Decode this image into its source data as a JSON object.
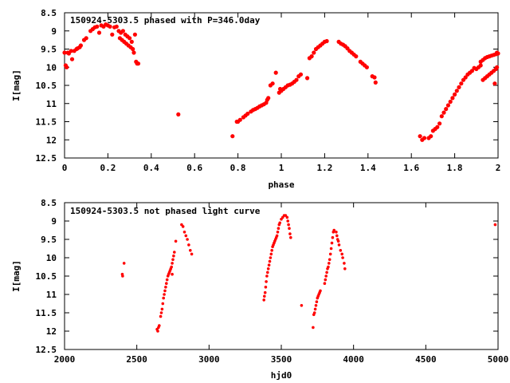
{
  "chart_data": [
    {
      "type": "scatter",
      "title": "150924-5303.5 phased with P=346.0day",
      "xlabel": "phase",
      "ylabel": "I[mag]",
      "xlim": [
        0,
        2
      ],
      "ylim": [
        12.5,
        8.5
      ],
      "y_reversed": true,
      "x_ticks": [
        "0",
        "0.2",
        "0.4",
        "0.6",
        "0.8",
        "1",
        "1.2",
        "1.4",
        "1.6",
        "1.8",
        "2"
      ],
      "x_tick_values": [
        0,
        0.2,
        0.4,
        0.6,
        0.8,
        1.0,
        1.2,
        1.4,
        1.6,
        1.8,
        2.0
      ],
      "y_ticks": [
        "8.5",
        "9",
        "9.5",
        "10",
        "10.5",
        "11",
        "11.5",
        "12",
        "12.5"
      ],
      "y_tick_values": [
        8.5,
        9.0,
        9.5,
        10.0,
        10.5,
        11.0,
        11.5,
        12.0,
        12.5
      ],
      "grid": false,
      "marker_color": "#ff0000",
      "points": [
        [
          0.0,
          9.6
        ],
        [
          0.005,
          9.95
        ],
        [
          0.01,
          10.0
        ],
        [
          0.015,
          9.6
        ],
        [
          0.02,
          9.62
        ],
        [
          0.03,
          9.55
        ],
        [
          0.035,
          9.78
        ],
        [
          0.045,
          9.55
        ],
        [
          0.055,
          9.5
        ],
        [
          0.06,
          9.48
        ],
        [
          0.07,
          9.45
        ],
        [
          0.075,
          9.4
        ],
        [
          0.09,
          9.25
        ],
        [
          0.1,
          9.2
        ],
        [
          0.12,
          9.0
        ],
        [
          0.13,
          8.95
        ],
        [
          0.14,
          8.9
        ],
        [
          0.15,
          8.88
        ],
        [
          0.16,
          9.05
        ],
        [
          0.17,
          8.85
        ],
        [
          0.18,
          8.88
        ],
        [
          0.19,
          8.82
        ],
        [
          0.2,
          8.85
        ],
        [
          0.21,
          8.88
        ],
        [
          0.22,
          9.1
        ],
        [
          0.23,
          8.9
        ],
        [
          0.24,
          8.88
        ],
        [
          0.25,
          9.0
        ],
        [
          0.255,
          9.2
        ],
        [
          0.26,
          9.05
        ],
        [
          0.265,
          9.25
        ],
        [
          0.27,
          9.0
        ],
        [
          0.275,
          9.3
        ],
        [
          0.28,
          9.1
        ],
        [
          0.285,
          9.35
        ],
        [
          0.29,
          9.15
        ],
        [
          0.295,
          9.4
        ],
        [
          0.3,
          9.2
        ],
        [
          0.305,
          9.45
        ],
        [
          0.31,
          9.3
        ],
        [
          0.315,
          9.5
        ],
        [
          0.32,
          9.6
        ],
        [
          0.325,
          9.1
        ],
        [
          0.33,
          9.85
        ],
        [
          0.335,
          9.9
        ],
        [
          0.34,
          9.9
        ],
        [
          0.525,
          11.3
        ],
        [
          0.775,
          11.9
        ],
        [
          0.795,
          11.5
        ],
        [
          0.8,
          11.5
        ],
        [
          0.81,
          11.45
        ],
        [
          0.825,
          11.38
        ],
        [
          0.835,
          11.33
        ],
        [
          0.845,
          11.28
        ],
        [
          0.86,
          11.22
        ],
        [
          0.87,
          11.18
        ],
        [
          0.88,
          11.15
        ],
        [
          0.89,
          11.12
        ],
        [
          0.9,
          11.08
        ],
        [
          0.91,
          11.05
        ],
        [
          0.92,
          11.02
        ],
        [
          0.93,
          10.98
        ],
        [
          0.935,
          10.9
        ],
        [
          0.94,
          10.85
        ],
        [
          0.95,
          10.5
        ],
        [
          0.96,
          10.45
        ],
        [
          0.975,
          10.15
        ],
        [
          0.99,
          10.7
        ],
        [
          0.995,
          10.6
        ],
        [
          1.0,
          10.65
        ],
        [
          1.01,
          10.6
        ],
        [
          1.02,
          10.55
        ],
        [
          1.03,
          10.5
        ],
        [
          1.04,
          10.48
        ],
        [
          1.05,
          10.45
        ],
        [
          1.06,
          10.4
        ],
        [
          1.07,
          10.35
        ],
        [
          1.08,
          10.25
        ],
        [
          1.09,
          10.2
        ],
        [
          1.12,
          10.3
        ],
        [
          1.13,
          9.75
        ],
        [
          1.14,
          9.7
        ],
        [
          1.15,
          9.6
        ],
        [
          1.16,
          9.5
        ],
        [
          1.17,
          9.45
        ],
        [
          1.18,
          9.4
        ],
        [
          1.19,
          9.35
        ],
        [
          1.2,
          9.3
        ],
        [
          1.21,
          9.28
        ],
        [
          1.265,
          9.3
        ],
        [
          1.275,
          9.35
        ],
        [
          1.285,
          9.38
        ],
        [
          1.295,
          9.42
        ],
        [
          1.305,
          9.48
        ],
        [
          1.315,
          9.55
        ],
        [
          1.325,
          9.6
        ],
        [
          1.335,
          9.65
        ],
        [
          1.345,
          9.7
        ],
        [
          1.365,
          9.85
        ],
        [
          1.375,
          9.9
        ],
        [
          1.385,
          9.95
        ],
        [
          1.395,
          10.0
        ],
        [
          1.42,
          10.25
        ],
        [
          1.43,
          10.28
        ],
        [
          1.435,
          10.42
        ],
        [
          1.64,
          11.9
        ],
        [
          1.65,
          12.0
        ],
        [
          1.66,
          11.95
        ],
        [
          1.68,
          11.95
        ],
        [
          1.69,
          11.9
        ],
        [
          1.7,
          11.75
        ],
        [
          1.71,
          11.7
        ],
        [
          1.72,
          11.65
        ],
        [
          1.73,
          11.55
        ],
        [
          1.74,
          11.35
        ],
        [
          1.75,
          11.25
        ],
        [
          1.76,
          11.15
        ],
        [
          1.77,
          11.05
        ],
        [
          1.78,
          10.95
        ],
        [
          1.79,
          10.85
        ],
        [
          1.8,
          10.75
        ],
        [
          1.81,
          10.65
        ],
        [
          1.82,
          10.55
        ],
        [
          1.83,
          10.45
        ],
        [
          1.84,
          10.35
        ],
        [
          1.85,
          10.28
        ],
        [
          1.86,
          10.2
        ],
        [
          1.87,
          10.15
        ],
        [
          1.88,
          10.1
        ],
        [
          1.89,
          10.02
        ],
        [
          1.9,
          10.05
        ],
        [
          1.91,
          10.0
        ],
        [
          1.92,
          9.95
        ],
        [
          1.93,
          10.35
        ],
        [
          1.94,
          10.3
        ],
        [
          1.95,
          10.25
        ],
        [
          1.96,
          10.2
        ],
        [
          1.97,
          10.15
        ],
        [
          1.98,
          10.1
        ],
        [
          1.985,
          10.45
        ],
        [
          1.99,
          10.05
        ],
        [
          1.995,
          10.0
        ],
        [
          1.92,
          9.85
        ],
        [
          1.93,
          9.8
        ],
        [
          1.94,
          9.75
        ],
        [
          1.95,
          9.72
        ],
        [
          1.96,
          9.7
        ],
        [
          1.97,
          9.68
        ],
        [
          1.98,
          9.66
        ],
        [
          1.99,
          9.64
        ],
        [
          2.0,
          9.62
        ],
        [
          1.995,
          9.6
        ]
      ]
    },
    {
      "type": "scatter",
      "title": "150924-5303.5 not phased light curve",
      "xlabel": "hjd0",
      "ylabel": "I[mag]",
      "xlim": [
        2000,
        5000
      ],
      "ylim": [
        12.5,
        8.5
      ],
      "y_reversed": true,
      "x_ticks": [
        "2000",
        "2500",
        "3000",
        "3500",
        "4000",
        "4500",
        "5000"
      ],
      "x_tick_values": [
        2000,
        2500,
        3000,
        3500,
        4000,
        4500,
        5000
      ],
      "y_ticks": [
        "8.5",
        "9",
        "9.5",
        "10",
        "10.5",
        "11",
        "11.5",
        "12",
        "12.5"
      ],
      "y_tick_values": [
        8.5,
        9.0,
        9.5,
        10.0,
        10.5,
        11.0,
        11.5,
        12.0,
        12.5
      ],
      "grid": false,
      "marker_color": "#ff0000",
      "points": [
        [
          2400,
          10.45
        ],
        [
          2402,
          10.5
        ],
        [
          2412,
          10.15
        ],
        [
          2640,
          11.95
        ],
        [
          2645,
          12.0
        ],
        [
          2650,
          11.9
        ],
        [
          2655,
          11.85
        ],
        [
          2665,
          11.6
        ],
        [
          2670,
          11.5
        ],
        [
          2675,
          11.4
        ],
        [
          2680,
          11.25
        ],
        [
          2685,
          11.1
        ],
        [
          2690,
          11.0
        ],
        [
          2695,
          10.9
        ],
        [
          2700,
          10.8
        ],
        [
          2705,
          10.7
        ],
        [
          2710,
          10.6
        ],
        [
          2715,
          10.5
        ],
        [
          2720,
          10.45
        ],
        [
          2725,
          10.4
        ],
        [
          2730,
          10.35
        ],
        [
          2735,
          10.3
        ],
        [
          2740,
          10.25
        ],
        [
          2745,
          10.15
        ],
        [
          2750,
          10.05
        ],
        [
          2755,
          9.95
        ],
        [
          2760,
          9.85
        ],
        [
          2745,
          10.45
        ],
        [
          2770,
          9.55
        ],
        [
          2810,
          9.1
        ],
        [
          2820,
          9.15
        ],
        [
          2830,
          9.3
        ],
        [
          2840,
          9.4
        ],
        [
          2850,
          9.5
        ],
        [
          2860,
          9.65
        ],
        [
          2870,
          9.8
        ],
        [
          2880,
          9.9
        ],
        [
          3380,
          11.15
        ],
        [
          3383,
          11.05
        ],
        [
          3388,
          10.95
        ],
        [
          3392,
          10.8
        ],
        [
          3396,
          10.65
        ],
        [
          3400,
          10.5
        ],
        [
          3405,
          10.4
        ],
        [
          3410,
          10.3
        ],
        [
          3415,
          10.2
        ],
        [
          3420,
          10.1
        ],
        [
          3425,
          10.0
        ],
        [
          3430,
          9.9
        ],
        [
          3435,
          9.8
        ],
        [
          3440,
          9.7
        ],
        [
          3445,
          9.65
        ],
        [
          3450,
          9.6
        ],
        [
          3455,
          9.55
        ],
        [
          3460,
          9.5
        ],
        [
          3465,
          9.45
        ],
        [
          3470,
          9.4
        ],
        [
          3475,
          9.3
        ],
        [
          3480,
          9.2
        ],
        [
          3485,
          9.1
        ],
        [
          3490,
          9.05
        ],
        [
          3500,
          8.95
        ],
        [
          3510,
          8.9
        ],
        [
          3520,
          8.85
        ],
        [
          3530,
          8.85
        ],
        [
          3540,
          8.9
        ],
        [
          3545,
          9.0
        ],
        [
          3550,
          9.1
        ],
        [
          3555,
          9.2
        ],
        [
          3560,
          9.35
        ],
        [
          3565,
          9.45
        ],
        [
          3640,
          11.3
        ],
        [
          3720,
          11.9
        ],
        [
          3725,
          11.55
        ],
        [
          3730,
          11.5
        ],
        [
          3735,
          11.4
        ],
        [
          3740,
          11.3
        ],
        [
          3745,
          11.2
        ],
        [
          3750,
          11.1
        ],
        [
          3755,
          11.05
        ],
        [
          3760,
          11.0
        ],
        [
          3765,
          10.95
        ],
        [
          3770,
          10.9
        ],
        [
          3800,
          10.7
        ],
        [
          3805,
          10.6
        ],
        [
          3810,
          10.5
        ],
        [
          3815,
          10.4
        ],
        [
          3820,
          10.3
        ],
        [
          3825,
          10.25
        ],
        [
          3830,
          10.15
        ],
        [
          3835,
          10.05
        ],
        [
          3840,
          9.9
        ],
        [
          3845,
          9.75
        ],
        [
          3850,
          9.6
        ],
        [
          3855,
          9.45
        ],
        [
          3860,
          9.3
        ],
        [
          3865,
          9.25
        ],
        [
          3880,
          9.3
        ],
        [
          3885,
          9.4
        ],
        [
          3890,
          9.5
        ],
        [
          3895,
          9.55
        ],
        [
          3900,
          9.65
        ],
        [
          3910,
          9.8
        ],
        [
          3920,
          9.9
        ],
        [
          3925,
          10.0
        ],
        [
          3935,
          10.15
        ],
        [
          3940,
          10.3
        ],
        [
          4980,
          9.1
        ]
      ]
    }
  ]
}
